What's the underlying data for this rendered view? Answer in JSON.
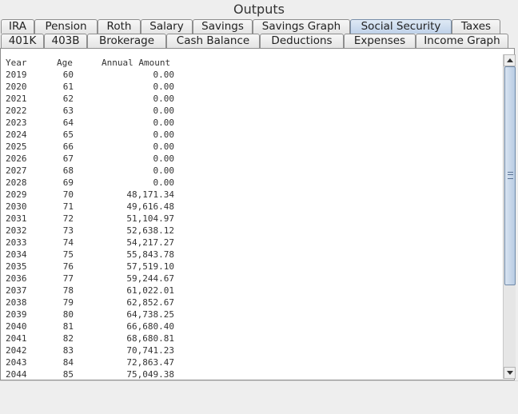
{
  "window": {
    "title": "Outputs"
  },
  "tabs": {
    "row1": [
      "IRA",
      "Pension",
      "Roth",
      "Salary",
      "Savings",
      "Savings Graph",
      "Social Security",
      "Taxes"
    ],
    "row2": [
      "401K",
      "403B",
      "Brokerage",
      "Cash Balance",
      "Deductions",
      "Expenses",
      "Income Graph"
    ],
    "selected": "Social Security"
  },
  "table": {
    "headers": {
      "year": "Year",
      "age": "Age",
      "amount": "Annual Amount"
    },
    "rows": [
      [
        "2019",
        "60",
        "0.00"
      ],
      [
        "2020",
        "61",
        "0.00"
      ],
      [
        "2021",
        "62",
        "0.00"
      ],
      [
        "2022",
        "63",
        "0.00"
      ],
      [
        "2023",
        "64",
        "0.00"
      ],
      [
        "2024",
        "65",
        "0.00"
      ],
      [
        "2025",
        "66",
        "0.00"
      ],
      [
        "2026",
        "67",
        "0.00"
      ],
      [
        "2027",
        "68",
        "0.00"
      ],
      [
        "2028",
        "69",
        "0.00"
      ],
      [
        "2029",
        "70",
        "48,171.34"
      ],
      [
        "2030",
        "71",
        "49,616.48"
      ],
      [
        "2031",
        "72",
        "51,104.97"
      ],
      [
        "2032",
        "73",
        "52,638.12"
      ],
      [
        "2033",
        "74",
        "54,217.27"
      ],
      [
        "2034",
        "75",
        "55,843.78"
      ],
      [
        "2035",
        "76",
        "57,519.10"
      ],
      [
        "2036",
        "77",
        "59,244.67"
      ],
      [
        "2037",
        "78",
        "61,022.01"
      ],
      [
        "2038",
        "79",
        "62,852.67"
      ],
      [
        "2039",
        "80",
        "64,738.25"
      ],
      [
        "2040",
        "81",
        "66,680.40"
      ],
      [
        "2041",
        "82",
        "68,680.81"
      ],
      [
        "2042",
        "83",
        "70,741.23"
      ],
      [
        "2043",
        "84",
        "72,863.47"
      ],
      [
        "2044",
        "85",
        "75,049.38"
      ]
    ]
  },
  "scrollbar": {
    "position": 0.0,
    "visible_fraction": 0.68
  }
}
